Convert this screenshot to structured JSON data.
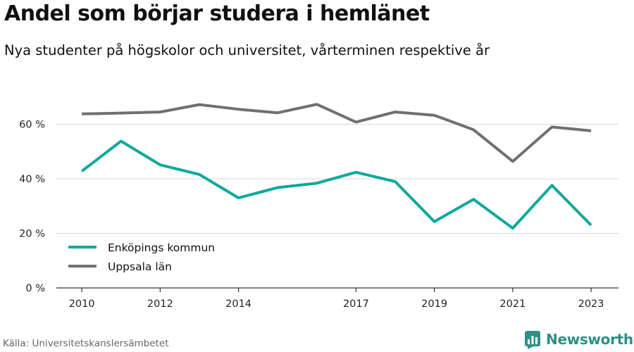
{
  "title": "Andel som börjar studera i hemlänet",
  "subtitle": "Nya studenter på högskolor och universitet, vårterminen respektive år",
  "source": "Källa: Universitetskanslersämbetet",
  "brand": {
    "name": "Newsworthy",
    "icon": "newsworthy-logo-icon",
    "color": "#2e8f86"
  },
  "chart_data": {
    "type": "line",
    "title": "",
    "xlabel": "",
    "ylabel": "",
    "x": [
      2010,
      2011,
      2012,
      2013,
      2014,
      2015,
      2016,
      2017,
      2018,
      2019,
      2020,
      2021,
      2022,
      2023
    ],
    "x_tick_labels": [
      "2010",
      "2012",
      "2014",
      "2017",
      "2019",
      "2021",
      "2023"
    ],
    "x_tick_values": [
      2010,
      2012,
      2014,
      2017,
      2019,
      2021,
      2023
    ],
    "y_ticks": [
      {
        "value": 0,
        "label": "0 %"
      },
      {
        "value": 20,
        "label": "20 %"
      },
      {
        "value": 40,
        "label": "40 %"
      },
      {
        "value": 60,
        "label": "60 %"
      }
    ],
    "ylim": [
      0,
      72
    ],
    "xlim": [
      2009.35,
      2023.7
    ],
    "grid": true,
    "legend_position": "bottom-left",
    "series": [
      {
        "name": "Enköpings kommun",
        "color": "#10a89c",
        "values": [
          42.8,
          53.8,
          45.1,
          41.6,
          33.0,
          36.8,
          38.4,
          42.4,
          39.0,
          24.3,
          32.5,
          21.9,
          37.6,
          23.0
        ]
      },
      {
        "name": "Uppsala län",
        "color": "#706f73",
        "values": [
          63.8,
          64.1,
          64.5,
          67.2,
          65.5,
          64.2,
          67.3,
          60.8,
          64.5,
          63.3,
          58.0,
          46.4,
          59.0,
          57.6
        ]
      }
    ]
  }
}
